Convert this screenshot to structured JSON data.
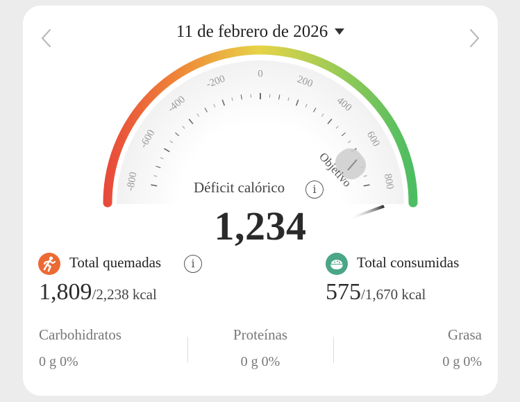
{
  "header": {
    "date": "11 de febrero de 2026",
    "prev_icon": "chevron-left-icon",
    "next_icon": "chevron-right-icon",
    "dropdown_icon": "caret-down-icon"
  },
  "gauge": {
    "ticks": [
      "-800",
      "-600",
      "-400",
      "-200",
      "0",
      "200",
      "400",
      "600",
      "800"
    ],
    "min": -800,
    "max": 800,
    "goal_label": "Objetivo",
    "colors": [
      "#e84a3a",
      "#ef8a38",
      "#e7d348",
      "#9ccb55",
      "#4dbd62"
    ]
  },
  "deficit": {
    "label": "Déficit calórico",
    "value": "1,234",
    "info_icon": "info-icon"
  },
  "burned": {
    "icon": "running-icon",
    "title": "Total quemadas",
    "value": "1,809",
    "total": "/2,238 kcal",
    "color": "#ec6a33"
  },
  "consumed": {
    "icon": "food-bowl-icon",
    "title": "Total consumidas",
    "value": "575",
    "total": "/1,670 kcal",
    "color": "#4aa686"
  },
  "macros": [
    {
      "name": "Carbohidratos",
      "value": "0 g  0%"
    },
    {
      "name": "Proteínas",
      "value": "0 g  0%"
    },
    {
      "name": "Grasa",
      "value": "0 g  0%"
    }
  ]
}
